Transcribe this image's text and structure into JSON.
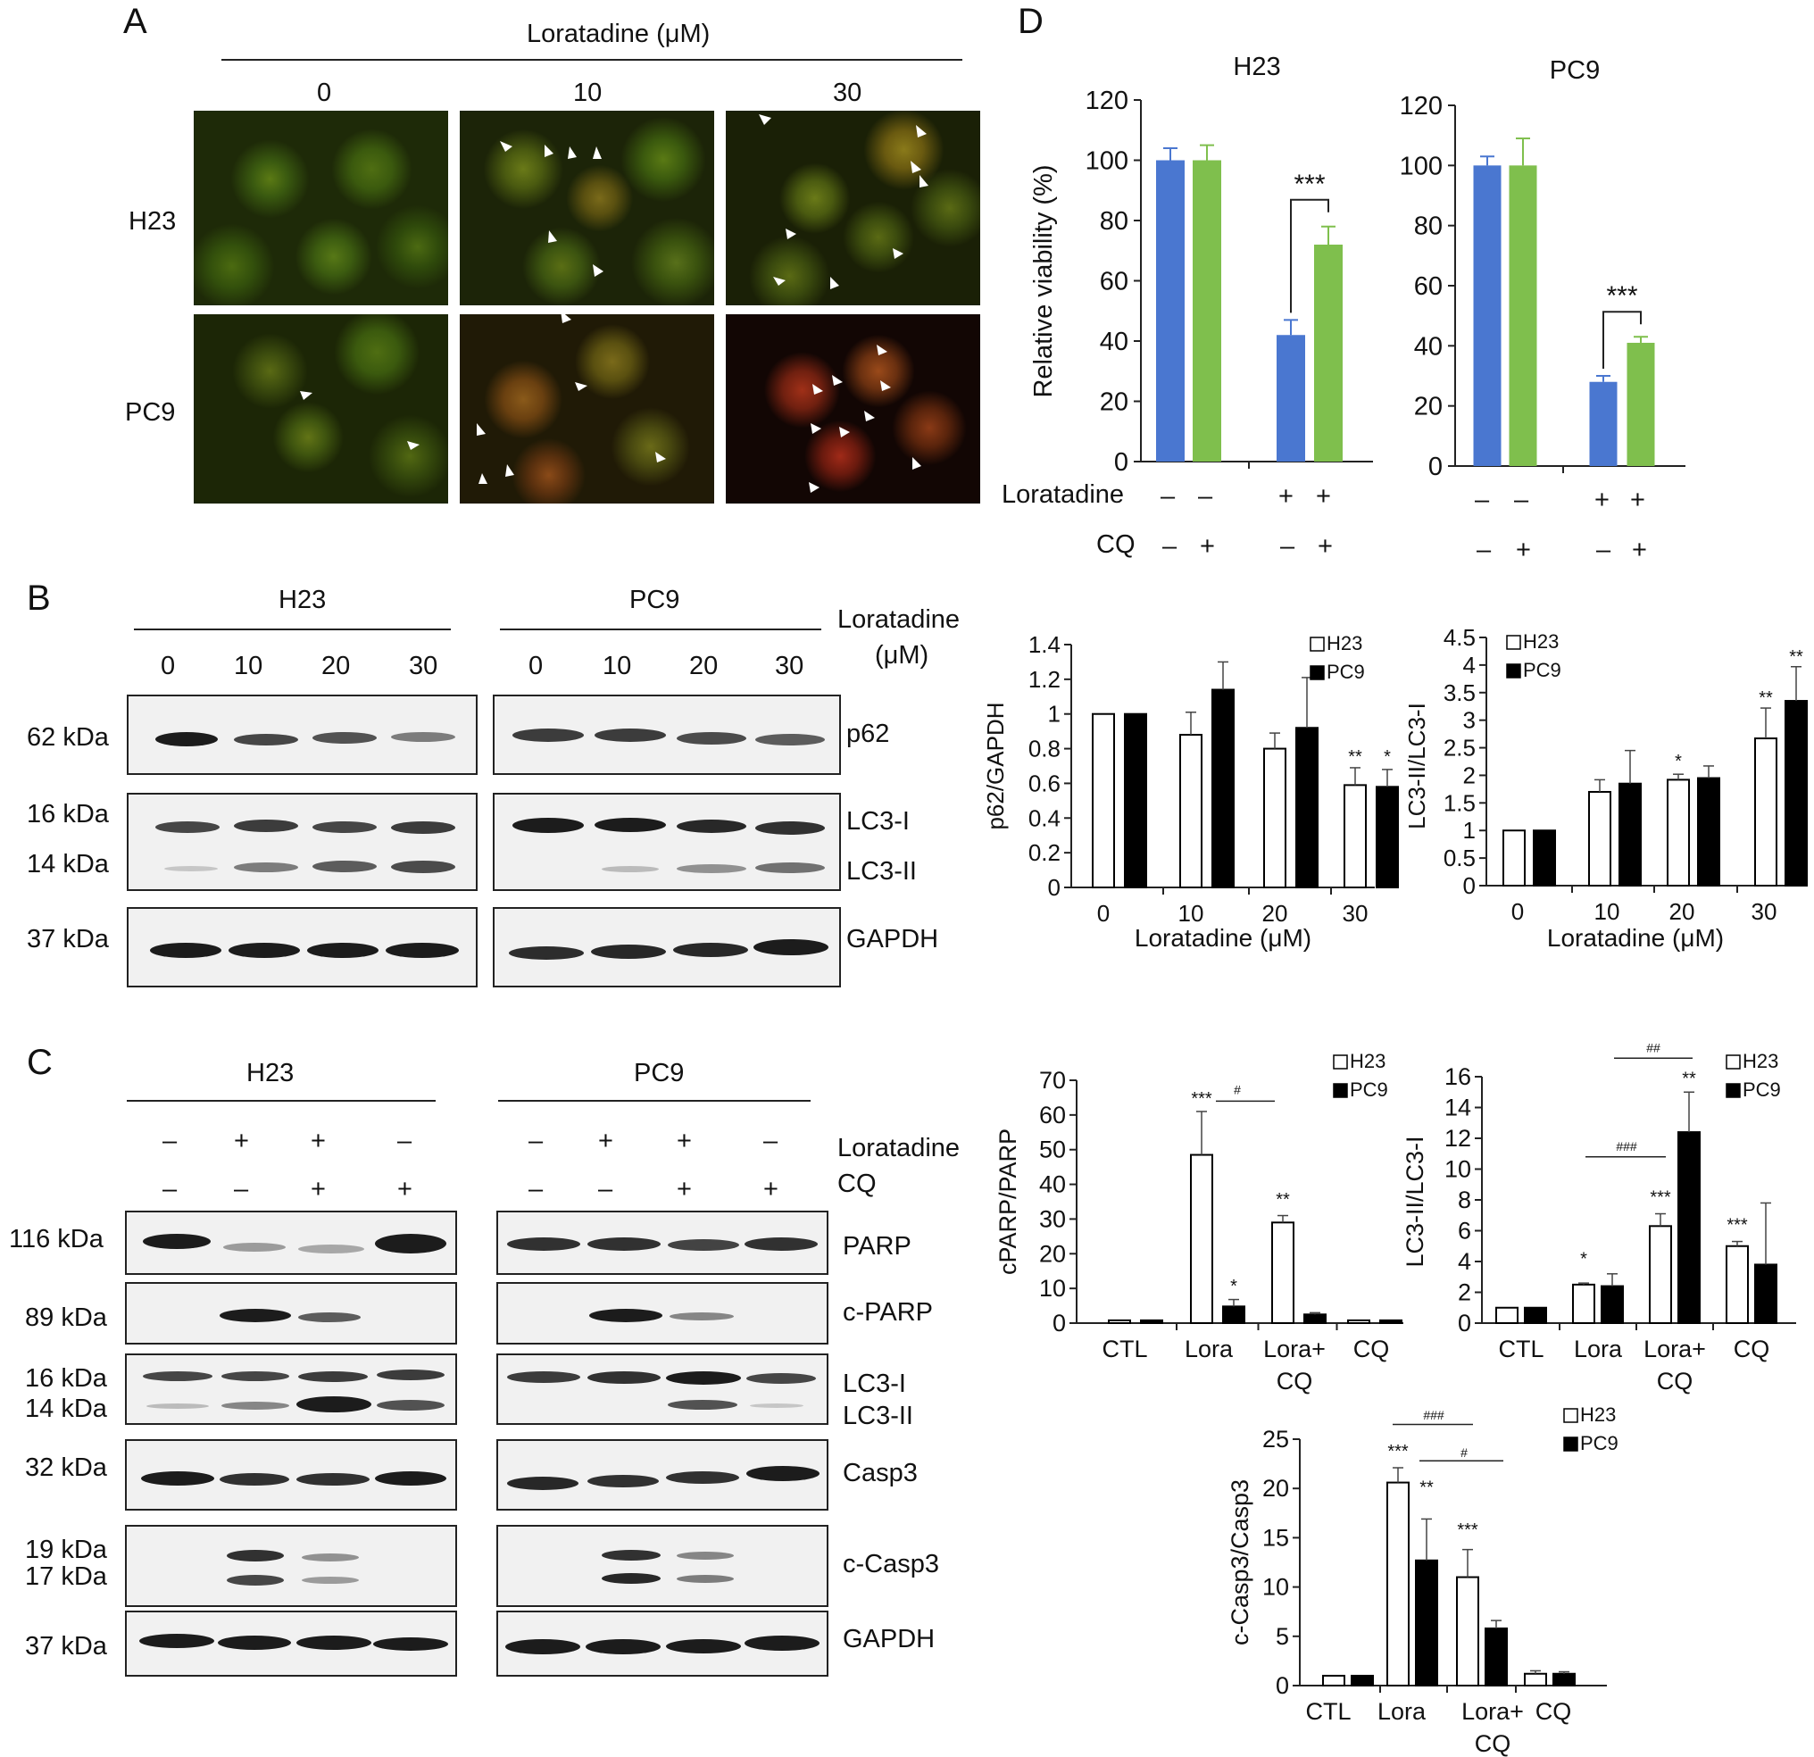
{
  "panel_letters": [
    "A",
    "B",
    "C",
    "D"
  ],
  "panelA": {
    "treatment_label": "Loratadine (μM)",
    "concentrations": [
      "0",
      "10",
      "30"
    ],
    "cell_lines": [
      "H23",
      "PC9"
    ]
  },
  "panelB": {
    "cell_lines": [
      "H23",
      "PC9"
    ],
    "concentrations": [
      "0",
      "10",
      "20",
      "30"
    ],
    "treatment_label_line1": "Loratadine",
    "treatment_label_line2": "(μM)",
    "markers": [
      "62 kDa",
      "16 kDa",
      "14 kDa",
      "37 kDa"
    ],
    "proteins": [
      "p62",
      "LC3-I",
      "LC3-II",
      "GAPDH"
    ]
  },
  "panelC": {
    "cell_lines": [
      "H23",
      "PC9"
    ],
    "loratadine_signs": [
      "–",
      "+",
      "+",
      "–"
    ],
    "cq_signs": [
      "–",
      "–",
      "+",
      "+"
    ],
    "row_labels": [
      "Loratadine",
      "CQ"
    ],
    "markers": [
      "116 kDa",
      "89 kDa",
      "16 kDa",
      "14 kDa",
      "32 kDa",
      "19 kDa",
      "17 kDa",
      "37 kDa"
    ],
    "proteins": [
      "PARP",
      "c-PARP",
      "LC3-I",
      "LC3-II",
      "Casp3",
      "c-Casp3",
      "GAPDH"
    ]
  },
  "panelD_conditions": {
    "row_labels": [
      "Loratadine",
      "CQ"
    ],
    "loratadine_signs": [
      "–",
      "–",
      "+",
      "+"
    ],
    "cq_signs": [
      "–",
      "+",
      "–",
      "+"
    ]
  },
  "chart_data": [
    {
      "id": "viability_h23",
      "type": "bar",
      "title": "H23",
      "ylabel": "Relative viability (%)",
      "ylim": [
        0,
        120
      ],
      "yticks": [
        "0",
        "20",
        "40",
        "60",
        "80",
        "100",
        "120"
      ],
      "values": [
        100,
        100,
        42,
        72
      ],
      "errors": [
        4,
        5,
        5,
        6
      ],
      "colors": [
        "#4a77d0",
        "#7fbf4d",
        "#4a77d0",
        "#7fbf4d"
      ],
      "significance": "***"
    },
    {
      "id": "viability_pc9",
      "type": "bar",
      "title": "PC9",
      "ylim": [
        0,
        120
      ],
      "yticks": [
        "0",
        "20",
        "40",
        "60",
        "80",
        "100",
        "120"
      ],
      "values": [
        100,
        100,
        28,
        41
      ],
      "errors": [
        3,
        9,
        2,
        2
      ],
      "colors": [
        "#4a77d0",
        "#7fbf4d",
        "#4a77d0",
        "#7fbf4d"
      ],
      "significance": "***"
    },
    {
      "id": "p62_gapdh",
      "type": "bar",
      "ylabel": "p62/GAPDH",
      "xlabel": "Loratadine (μM)",
      "categories": [
        "0",
        "10",
        "20",
        "30"
      ],
      "ylim": [
        0,
        1.4
      ],
      "yticks": [
        "0",
        "0.2",
        "0.4",
        "0.6",
        "0.8",
        "1",
        "1.2",
        "1.4"
      ],
      "series": [
        {
          "name": "H23",
          "values": [
            1.0,
            0.88,
            0.8,
            0.59
          ],
          "errors": [
            0,
            0.13,
            0.09,
            0.1
          ]
        },
        {
          "name": "PC9",
          "values": [
            1.0,
            1.14,
            0.92,
            0.58
          ],
          "errors": [
            0,
            0.16,
            0.29,
            0.1
          ]
        }
      ],
      "stars": [
        "",
        "",
        "",
        "** *"
      ]
    },
    {
      "id": "lc3_b",
      "type": "bar",
      "ylabel": "LC3-II/LC3-I",
      "xlabel": "Loratadine (μM)",
      "categories": [
        "0",
        "10",
        "20",
        "30"
      ],
      "ylim": [
        0,
        4.5
      ],
      "yticks": [
        "0",
        "0.5",
        "1",
        "1.5",
        "2",
        "2.5",
        "3",
        "3.5",
        "4",
        "4.5"
      ],
      "series": [
        {
          "name": "H23",
          "values": [
            1.0,
            1.7,
            1.92,
            2.67
          ],
          "errors": [
            0,
            0.22,
            0.1,
            0.55
          ]
        },
        {
          "name": "PC9",
          "values": [
            1.0,
            1.85,
            1.95,
            3.35
          ],
          "errors": [
            0,
            0.6,
            0.22,
            0.62
          ]
        }
      ],
      "stars": [
        "",
        "",
        "*",
        "** **"
      ]
    },
    {
      "id": "cparp_parp",
      "type": "bar",
      "ylabel": "cPARP/PARP",
      "categories": [
        "CTL",
        "Lora",
        "Lora+\nCQ",
        "CQ"
      ],
      "ylim": [
        0,
        70
      ],
      "yticks": [
        "0",
        "10",
        "20",
        "30",
        "40",
        "50",
        "60",
        "70"
      ],
      "series": [
        {
          "name": "H23",
          "values": [
            0.8,
            48.5,
            29,
            0.8
          ],
          "errors": [
            0,
            12.5,
            2,
            0
          ]
        },
        {
          "name": "PC9",
          "values": [
            0.8,
            4.8,
            2.5,
            0.8
          ],
          "errors": [
            0,
            2,
            0.5,
            0
          ]
        }
      ],
      "bracket": "#"
    },
    {
      "id": "lc3_c",
      "type": "bar",
      "ylabel": "LC3-II/LC3-I",
      "categories": [
        "CTL",
        "Lora",
        "Lora+\nCQ",
        "CQ"
      ],
      "ylim": [
        0,
        16
      ],
      "yticks": [
        "0",
        "2",
        "4",
        "6",
        "8",
        "10",
        "12",
        "14",
        "16"
      ],
      "series": [
        {
          "name": "H23",
          "values": [
            1.0,
            2.5,
            6.3,
            5.0
          ],
          "errors": [
            0,
            0.1,
            0.8,
            0.3
          ]
        },
        {
          "name": "PC9",
          "values": [
            1.0,
            2.4,
            12.4,
            3.8
          ],
          "errors": [
            0,
            0.8,
            2.6,
            4.0
          ]
        }
      ],
      "brackets": [
        "###",
        "##"
      ]
    },
    {
      "id": "ccasp3_casp3",
      "type": "bar",
      "ylabel": "c-Casp3/Casp3",
      "categories": [
        "CTL",
        "Lora",
        "Lora+\nCQ",
        "CQ"
      ],
      "ylim": [
        0,
        25
      ],
      "yticks": [
        "0",
        "5",
        "10",
        "15",
        "20",
        "25"
      ],
      "series": [
        {
          "name": "H23",
          "values": [
            1.0,
            20.6,
            11.0,
            1.2
          ],
          "errors": [
            0,
            1.5,
            2.8,
            0.3
          ]
        },
        {
          "name": "PC9",
          "values": [
            1.0,
            12.7,
            5.8,
            1.2
          ],
          "errors": [
            0,
            4.2,
            0.8,
            0.2
          ]
        }
      ],
      "brackets": [
        "###",
        "#"
      ]
    }
  ]
}
